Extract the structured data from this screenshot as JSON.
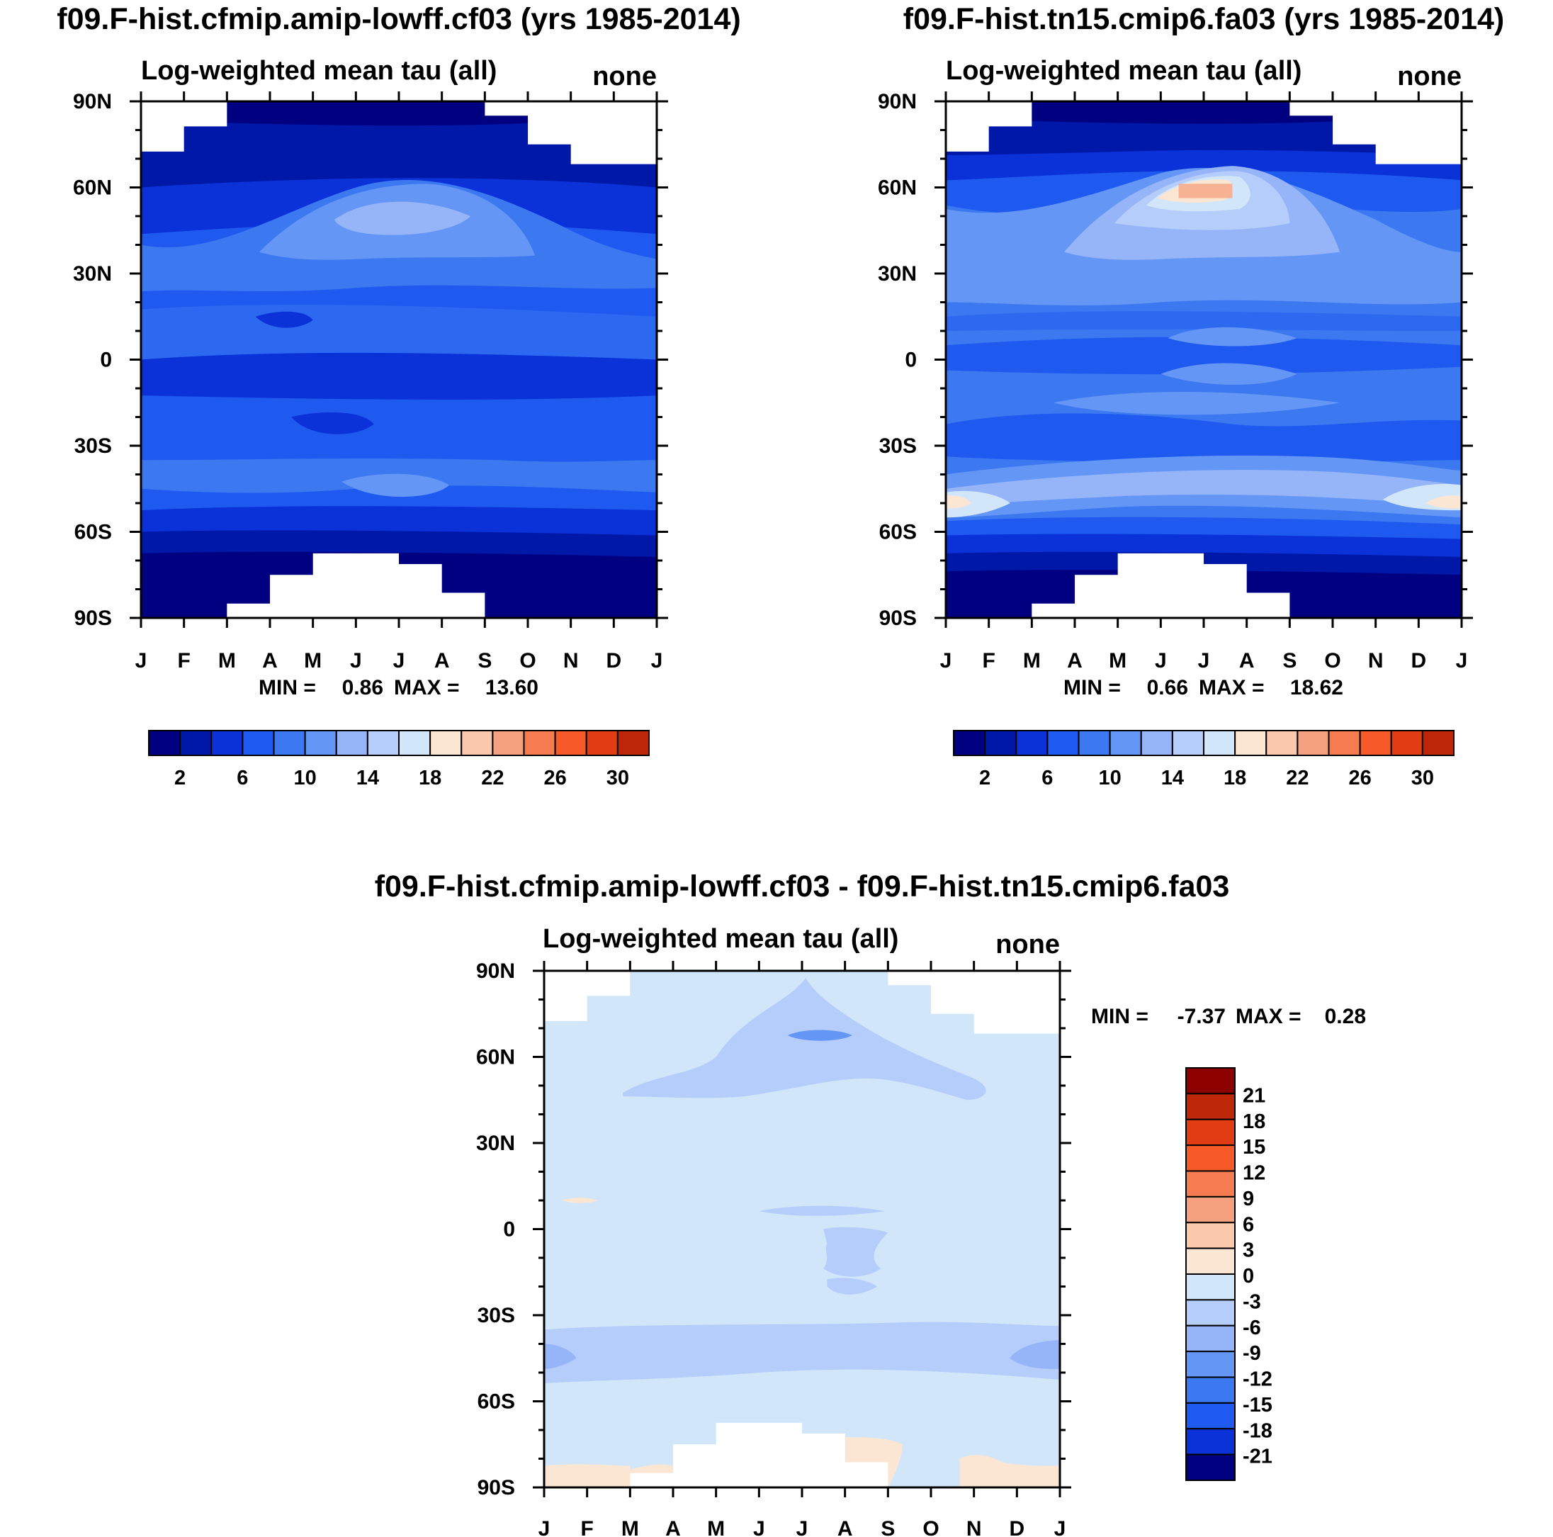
{
  "palette": [
    "#000080",
    "#0018a8",
    "#0a32d8",
    "#1e5af0",
    "#3c78f0",
    "#6496f5",
    "#96b4f8",
    "#b4cdfa",
    "#d2e6fa",
    "#fae6d2",
    "#fac8aa",
    "#f5a07e",
    "#f57c50",
    "#f55a28",
    "#e23c14",
    "#be2808",
    "#8c0000"
  ],
  "chart_data": [
    {
      "type": "heatmap",
      "title": "f09.F-hist.cfmip.amip-lowff.cf03 (yrs 1985-2014)",
      "subtitle": "Log-weighted mean tau (all)",
      "subtitle_right": "none",
      "x_ticks": [
        "J",
        "F",
        "M",
        "A",
        "M",
        "J",
        "J",
        "A",
        "S",
        "O",
        "N",
        "D",
        "J"
      ],
      "y_ticks": [
        "90N",
        "60N",
        "30N",
        "0",
        "30S",
        "60S",
        "90S"
      ],
      "y_range": [
        -90,
        90
      ],
      "min_label": "MIN =",
      "min_value": "0.86",
      "max_label": "MAX =",
      "max_value": "13.60",
      "colorbar_labels": [
        "2",
        "6",
        "10",
        "14",
        "18",
        "22",
        "26",
        "30"
      ]
    },
    {
      "type": "heatmap",
      "title": "f09.F-hist.tn15.cmip6.fa03 (yrs 1985-2014)",
      "subtitle": "Log-weighted mean tau (all)",
      "subtitle_right": "none",
      "x_ticks": [
        "J",
        "F",
        "M",
        "A",
        "M",
        "J",
        "J",
        "A",
        "S",
        "O",
        "N",
        "D",
        "J"
      ],
      "y_ticks": [
        "90N",
        "60N",
        "30N",
        "0",
        "30S",
        "60S",
        "90S"
      ],
      "y_range": [
        -90,
        90
      ],
      "min_label": "MIN =",
      "min_value": "0.66",
      "max_label": "MAX =",
      "max_value": "18.62",
      "colorbar_labels": [
        "2",
        "6",
        "10",
        "14",
        "18",
        "22",
        "26",
        "30"
      ]
    },
    {
      "type": "heatmap",
      "title": "f09.F-hist.cfmip.amip-lowff.cf03 - f09.F-hist.tn15.cmip6.fa03",
      "subtitle": "Log-weighted mean tau (all)",
      "subtitle_right": "none",
      "x_ticks": [
        "J",
        "F",
        "M",
        "A",
        "M",
        "J",
        "J",
        "A",
        "S",
        "O",
        "N",
        "D",
        "J"
      ],
      "y_ticks": [
        "90N",
        "60N",
        "30N",
        "0",
        "30S",
        "60S",
        "90S"
      ],
      "y_range": [
        -90,
        90
      ],
      "min_label": "MIN =",
      "min_value": "-7.37",
      "max_label": "MAX =",
      "max_value": "0.28",
      "colorbar_labels": [
        "21",
        "18",
        "15",
        "12",
        "9",
        "6",
        "3",
        "0",
        "-3",
        "-6",
        "-9",
        "-12",
        "-15",
        "-18",
        "-21"
      ]
    }
  ]
}
